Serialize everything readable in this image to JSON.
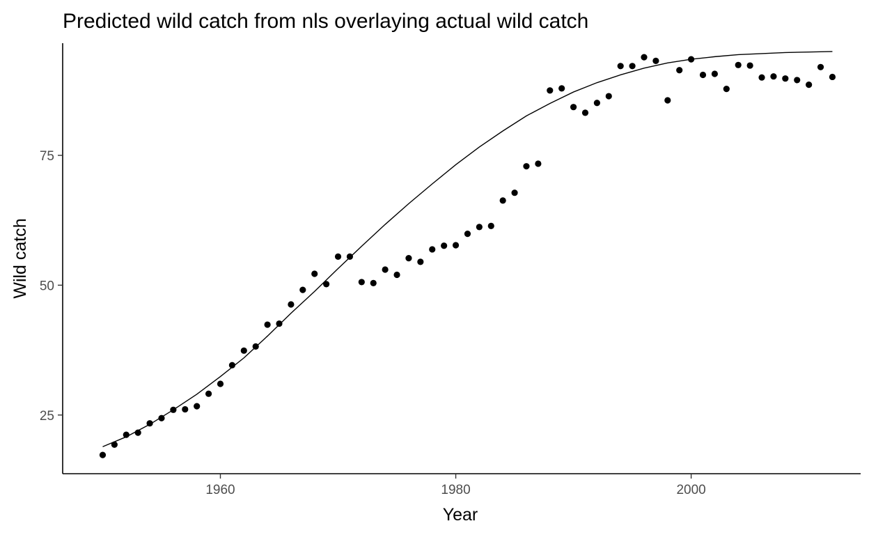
{
  "chart_data": {
    "type": "scatter",
    "title": "Predicted wild catch from nls overlaying actual wild catch",
    "xlabel": "Year",
    "ylabel": "Wild catch",
    "xlim": [
      1946.6,
      2014.4
    ],
    "ylim": [
      13.7,
      96.6
    ],
    "x_ticks": [
      1960,
      1980,
      2000
    ],
    "y_ticks": [
      25,
      50,
      75
    ],
    "x_tick_labels": [
      "1960",
      "1980",
      "2000"
    ],
    "y_tick_labels": [
      "25",
      "50",
      "75"
    ],
    "grid": false,
    "legend": "none",
    "point_color": "#000000",
    "line_color": "#000000",
    "series": [
      {
        "kind": "points",
        "x": [
          1950,
          1951,
          1952,
          1953,
          1954,
          1955,
          1956,
          1957,
          1958,
          1959,
          1960,
          1961,
          1962,
          1963,
          1964,
          1965,
          1966,
          1967,
          1968,
          1969,
          1970,
          1971,
          1972,
          1973,
          1974,
          1975,
          1976,
          1977,
          1978,
          1979,
          1980,
          1981,
          1982,
          1983,
          1984,
          1985,
          1986,
          1987,
          1988,
          1989,
          1990,
          1991,
          1992,
          1993,
          1994,
          1995,
          1996,
          1997,
          1998,
          1999,
          2000,
          2001,
          2002,
          2003,
          2004,
          2005,
          2006,
          2007,
          2008,
          2009,
          2010,
          2011,
          2012
        ],
        "y": [
          17.3,
          19.3,
          21.2,
          21.6,
          23.4,
          24.4,
          26.0,
          26.1,
          26.7,
          29.1,
          31.0,
          34.6,
          37.4,
          38.2,
          42.4,
          42.6,
          46.3,
          49.1,
          52.2,
          50.2,
          55.5,
          55.5,
          50.6,
          50.4,
          53.0,
          52.0,
          55.2,
          54.5,
          56.9,
          57.6,
          57.7,
          59.9,
          61.2,
          61.4,
          66.3,
          67.8,
          72.9,
          73.4,
          87.5,
          87.9,
          84.3,
          83.2,
          85.1,
          86.4,
          92.2,
          92.2,
          93.9,
          93.2,
          85.6,
          91.4,
          93.5,
          90.5,
          90.7,
          87.8,
          92.4,
          92.3,
          90.0,
          90.2,
          89.8,
          89.5,
          88.6,
          92.0,
          90.1
        ]
      },
      {
        "kind": "line",
        "x": [
          1950,
          1952,
          1954,
          1956,
          1958,
          1960,
          1962,
          1964,
          1966,
          1968,
          1970,
          1972,
          1974,
          1976,
          1978,
          1980,
          1982,
          1984,
          1986,
          1988,
          1990,
          1992,
          1994,
          1996,
          1998,
          2000,
          2002,
          2004,
          2006,
          2008,
          2010,
          2012
        ],
        "y": [
          18.9,
          20.8,
          23.2,
          26.0,
          29.0,
          32.4,
          36.0,
          40.2,
          44.6,
          48.8,
          53.2,
          57.5,
          61.7,
          65.7,
          69.5,
          73.2,
          76.6,
          79.7,
          82.6,
          85.0,
          87.2,
          89.0,
          90.5,
          91.8,
          92.8,
          93.5,
          94.0,
          94.4,
          94.6,
          94.8,
          94.9,
          95.0
        ]
      }
    ]
  }
}
